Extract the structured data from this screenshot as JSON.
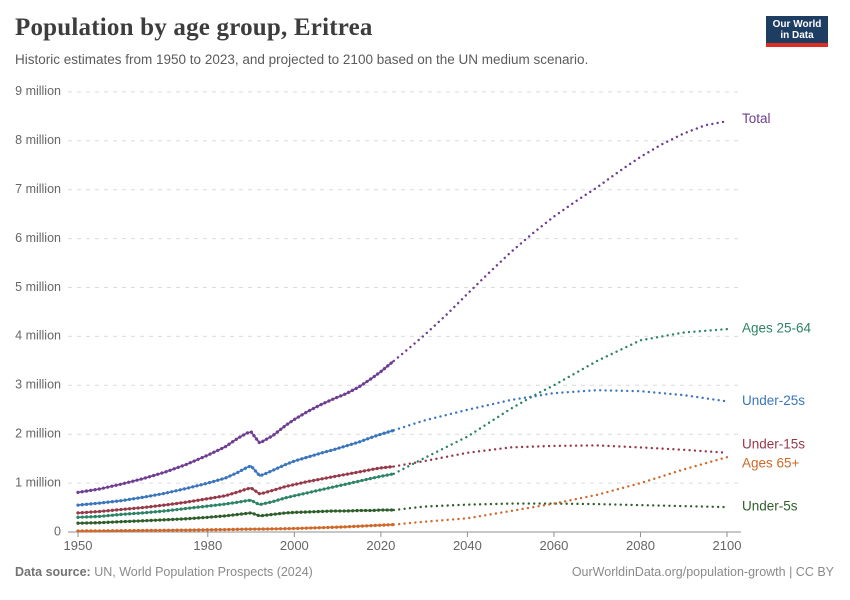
{
  "header": {
    "title": "Population by age group, Eritrea",
    "subtitle": "Historic estimates from 1950 to 2023, and projected to 2100 based on the UN medium scenario.",
    "logo_line1": "Our World",
    "logo_line2": "in Data",
    "logo_bg": "#1d3d63",
    "logo_bar": "#dc2e22"
  },
  "footer": {
    "source_label": "Data source:",
    "source_text": " UN, World Population Prospects (2024)",
    "link_text": "OurWorldinData.org/population-growth | CC BY"
  },
  "chart_data": {
    "type": "line",
    "title": "Population by age group, Eritrea",
    "xlabel": "",
    "ylabel": "",
    "grid": true,
    "legend_position": "right-edge-labels",
    "xlim": [
      1948,
      2105
    ],
    "ylim": [
      0,
      9.2
    ],
    "x_ticks": [
      1950,
      1980,
      2000,
      2020,
      2040,
      2060,
      2080,
      2100
    ],
    "y_ticks": [
      {
        "value": 0,
        "label": "0"
      },
      {
        "value": 1,
        "label": "1 million"
      },
      {
        "value": 2,
        "label": "2 million"
      },
      {
        "value": 3,
        "label": "3 million"
      },
      {
        "value": 4,
        "label": "4 million"
      },
      {
        "value": 5,
        "label": "5 million"
      },
      {
        "value": 6,
        "label": "6 million"
      },
      {
        "value": 7,
        "label": "7 million"
      },
      {
        "value": 8,
        "label": "8 million"
      },
      {
        "value": 9,
        "label": "9 million"
      }
    ],
    "projection_start_year": 2023,
    "units": "people (millions)",
    "series": [
      {
        "id": "total",
        "name": "Total",
        "color": "#6d3e91",
        "label_dy": -2,
        "historic": [
          [
            1950,
            0.81
          ],
          [
            1955,
            0.88
          ],
          [
            1960,
            0.98
          ],
          [
            1965,
            1.09
          ],
          [
            1970,
            1.22
          ],
          [
            1975,
            1.38
          ],
          [
            1980,
            1.57
          ],
          [
            1984,
            1.74
          ],
          [
            1987,
            1.92
          ],
          [
            1989,
            2.02
          ],
          [
            1990,
            2.05
          ],
          [
            1991,
            1.93
          ],
          [
            1992,
            1.82
          ],
          [
            1993,
            1.87
          ],
          [
            1995,
            1.97
          ],
          [
            1998,
            2.18
          ],
          [
            2000,
            2.3
          ],
          [
            2003,
            2.46
          ],
          [
            2006,
            2.6
          ],
          [
            2009,
            2.72
          ],
          [
            2012,
            2.83
          ],
          [
            2015,
            2.97
          ],
          [
            2018,
            3.15
          ],
          [
            2020,
            3.28
          ],
          [
            2023,
            3.5
          ]
        ],
        "projection": [
          [
            2023,
            3.5
          ],
          [
            2026,
            3.72
          ],
          [
            2030,
            4.02
          ],
          [
            2035,
            4.43
          ],
          [
            2040,
            4.87
          ],
          [
            2045,
            5.3
          ],
          [
            2050,
            5.72
          ],
          [
            2055,
            6.1
          ],
          [
            2060,
            6.45
          ],
          [
            2065,
            6.76
          ],
          [
            2070,
            7.05
          ],
          [
            2075,
            7.37
          ],
          [
            2080,
            7.67
          ],
          [
            2085,
            7.93
          ],
          [
            2090,
            8.15
          ],
          [
            2095,
            8.32
          ],
          [
            2100,
            8.4
          ]
        ]
      },
      {
        "id": "ages-25-64",
        "name": "Ages 25-64",
        "color": "#2c8465",
        "label_dy": 0,
        "historic": [
          [
            1950,
            0.3
          ],
          [
            1955,
            0.32
          ],
          [
            1960,
            0.36
          ],
          [
            1965,
            0.39
          ],
          [
            1970,
            0.43
          ],
          [
            1975,
            0.48
          ],
          [
            1980,
            0.53
          ],
          [
            1984,
            0.57
          ],
          [
            1987,
            0.61
          ],
          [
            1989,
            0.64
          ],
          [
            1990,
            0.65
          ],
          [
            1991,
            0.6
          ],
          [
            1992,
            0.56
          ],
          [
            1993,
            0.58
          ],
          [
            1995,
            0.62
          ],
          [
            1998,
            0.7
          ],
          [
            2000,
            0.74
          ],
          [
            2003,
            0.8
          ],
          [
            2006,
            0.86
          ],
          [
            2009,
            0.92
          ],
          [
            2012,
            0.98
          ],
          [
            2015,
            1.04
          ],
          [
            2018,
            1.1
          ],
          [
            2020,
            1.14
          ],
          [
            2023,
            1.19
          ]
        ],
        "projection": [
          [
            2023,
            1.19
          ],
          [
            2030,
            1.51
          ],
          [
            2040,
            1.95
          ],
          [
            2050,
            2.52
          ],
          [
            2056,
            2.82
          ],
          [
            2060,
            3.0
          ],
          [
            2070,
            3.5
          ],
          [
            2080,
            3.92
          ],
          [
            2090,
            4.08
          ],
          [
            2100,
            4.15
          ]
        ]
      },
      {
        "id": "under-25s",
        "name": "Under-25s",
        "color": "#3b76bd",
        "label_dy": 0,
        "historic": [
          [
            1950,
            0.55
          ],
          [
            1955,
            0.59
          ],
          [
            1960,
            0.64
          ],
          [
            1965,
            0.71
          ],
          [
            1970,
            0.79
          ],
          [
            1975,
            0.89
          ],
          [
            1980,
            1.0
          ],
          [
            1984,
            1.1
          ],
          [
            1987,
            1.22
          ],
          [
            1989,
            1.32
          ],
          [
            1990,
            1.35
          ],
          [
            1991,
            1.25
          ],
          [
            1992,
            1.15
          ],
          [
            1993,
            1.18
          ],
          [
            1995,
            1.26
          ],
          [
            1998,
            1.38
          ],
          [
            2000,
            1.45
          ],
          [
            2003,
            1.53
          ],
          [
            2006,
            1.61
          ],
          [
            2009,
            1.68
          ],
          [
            2012,
            1.76
          ],
          [
            2015,
            1.84
          ],
          [
            2018,
            1.94
          ],
          [
            2020,
            2.0
          ],
          [
            2023,
            2.08
          ]
        ],
        "projection": [
          [
            2023,
            2.08
          ],
          [
            2030,
            2.28
          ],
          [
            2040,
            2.5
          ],
          [
            2050,
            2.7
          ],
          [
            2060,
            2.84
          ],
          [
            2070,
            2.9
          ],
          [
            2080,
            2.88
          ],
          [
            2090,
            2.8
          ],
          [
            2100,
            2.67
          ]
        ]
      },
      {
        "id": "under-15s",
        "name": "Under-15s",
        "color": "#963a4a",
        "label_dy": -8,
        "historic": [
          [
            1950,
            0.39
          ],
          [
            1955,
            0.42
          ],
          [
            1960,
            0.46
          ],
          [
            1965,
            0.5
          ],
          [
            1970,
            0.55
          ],
          [
            1975,
            0.61
          ],
          [
            1980,
            0.68
          ],
          [
            1984,
            0.74
          ],
          [
            1987,
            0.82
          ],
          [
            1989,
            0.88
          ],
          [
            1990,
            0.9
          ],
          [
            1991,
            0.84
          ],
          [
            1992,
            0.78
          ],
          [
            1993,
            0.8
          ],
          [
            1995,
            0.85
          ],
          [
            1998,
            0.93
          ],
          [
            2000,
            0.97
          ],
          [
            2003,
            1.03
          ],
          [
            2006,
            1.08
          ],
          [
            2009,
            1.13
          ],
          [
            2012,
            1.18
          ],
          [
            2015,
            1.23
          ],
          [
            2018,
            1.28
          ],
          [
            2020,
            1.31
          ],
          [
            2023,
            1.34
          ]
        ],
        "projection": [
          [
            2023,
            1.34
          ],
          [
            2030,
            1.45
          ],
          [
            2040,
            1.62
          ],
          [
            2050,
            1.73
          ],
          [
            2060,
            1.76
          ],
          [
            2070,
            1.77
          ],
          [
            2080,
            1.73
          ],
          [
            2090,
            1.68
          ],
          [
            2100,
            1.62
          ]
        ]
      },
      {
        "id": "ages-65plus",
        "name": "Ages 65+",
        "color": "#cf6829",
        "label_dy": 7,
        "historic": [
          [
            1950,
            0.02
          ],
          [
            1955,
            0.023
          ],
          [
            1960,
            0.026
          ],
          [
            1965,
            0.03
          ],
          [
            1970,
            0.034
          ],
          [
            1975,
            0.039
          ],
          [
            1980,
            0.045
          ],
          [
            1984,
            0.05
          ],
          [
            1987,
            0.055
          ],
          [
            1989,
            0.058
          ],
          [
            1990,
            0.06
          ],
          [
            1992,
            0.059
          ],
          [
            1995,
            0.063
          ],
          [
            1998,
            0.068
          ],
          [
            2000,
            0.072
          ],
          [
            2003,
            0.08
          ],
          [
            2006,
            0.088
          ],
          [
            2009,
            0.097
          ],
          [
            2012,
            0.107
          ],
          [
            2015,
            0.118
          ],
          [
            2018,
            0.13
          ],
          [
            2020,
            0.14
          ],
          [
            2023,
            0.152
          ]
        ],
        "projection": [
          [
            2023,
            0.152
          ],
          [
            2030,
            0.21
          ],
          [
            2040,
            0.28
          ],
          [
            2050,
            0.43
          ],
          [
            2060,
            0.58
          ],
          [
            2070,
            0.76
          ],
          [
            2080,
            1.0
          ],
          [
            2090,
            1.28
          ],
          [
            2100,
            1.53
          ]
        ]
      },
      {
        "id": "under-5s",
        "name": "Under-5s",
        "color": "#2e5f2b",
        "label_dy": 0,
        "historic": [
          [
            1950,
            0.18
          ],
          [
            1955,
            0.19
          ],
          [
            1960,
            0.21
          ],
          [
            1965,
            0.23
          ],
          [
            1970,
            0.25
          ],
          [
            1975,
            0.27
          ],
          [
            1980,
            0.3
          ],
          [
            1984,
            0.33
          ],
          [
            1987,
            0.36
          ],
          [
            1989,
            0.38
          ],
          [
            1990,
            0.39
          ],
          [
            1991,
            0.36
          ],
          [
            1992,
            0.33
          ],
          [
            1993,
            0.34
          ],
          [
            1995,
            0.36
          ],
          [
            1998,
            0.39
          ],
          [
            2000,
            0.4
          ],
          [
            2003,
            0.41
          ],
          [
            2006,
            0.42
          ],
          [
            2009,
            0.43
          ],
          [
            2012,
            0.43
          ],
          [
            2015,
            0.44
          ],
          [
            2018,
            0.44
          ],
          [
            2020,
            0.45
          ],
          [
            2023,
            0.45
          ]
        ],
        "projection": [
          [
            2023,
            0.45
          ],
          [
            2030,
            0.52
          ],
          [
            2040,
            0.56
          ],
          [
            2050,
            0.58
          ],
          [
            2060,
            0.58
          ],
          [
            2070,
            0.57
          ],
          [
            2080,
            0.55
          ],
          [
            2090,
            0.53
          ],
          [
            2100,
            0.51
          ]
        ]
      }
    ]
  }
}
